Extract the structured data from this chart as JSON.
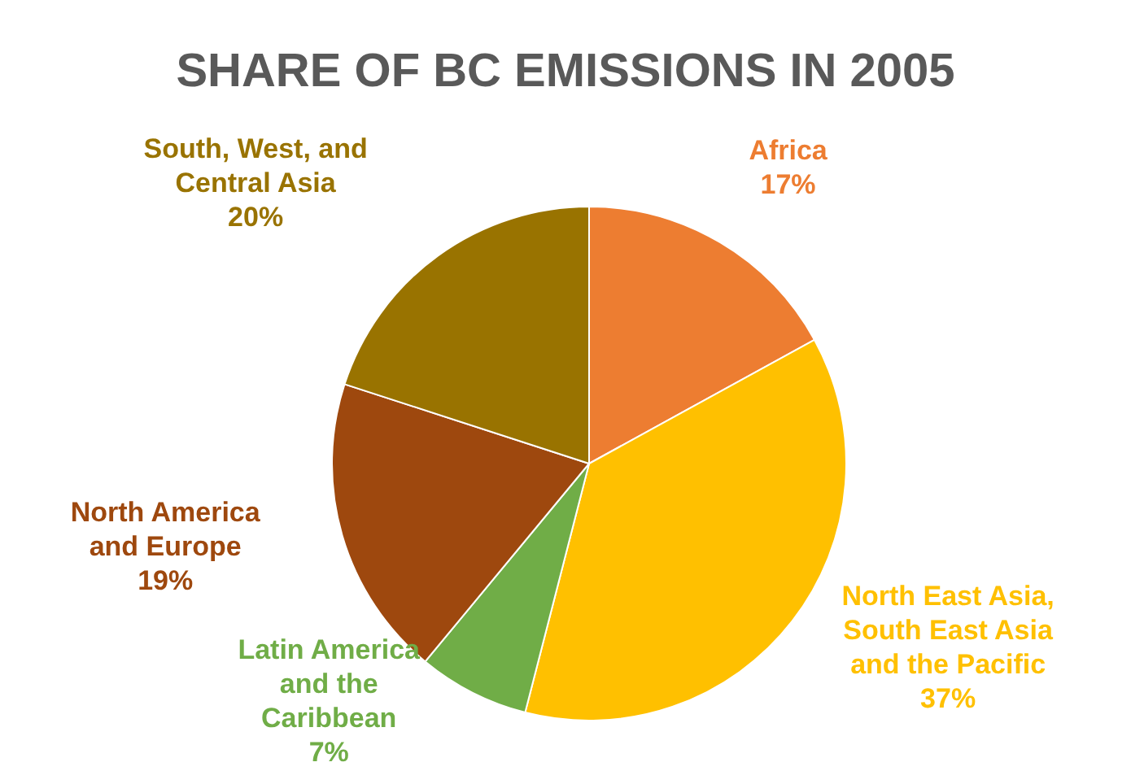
{
  "chart_data": {
    "type": "pie",
    "title": "SHARE OF BC EMISSIONS IN 2005",
    "categories": [
      "Africa",
      "North East Asia, South East Asia and the Pacific",
      "Latin America and the Caribbean",
      "North America and Europe",
      "South, West, and Central Asia"
    ],
    "values": [
      17,
      37,
      7,
      19,
      20
    ],
    "colors": [
      "#ed7d31",
      "#ffc000",
      "#70ad47",
      "#9e480e",
      "#997300"
    ],
    "value_labels": [
      "17%",
      "37%",
      "7%",
      "19%",
      "20%"
    ]
  }
}
